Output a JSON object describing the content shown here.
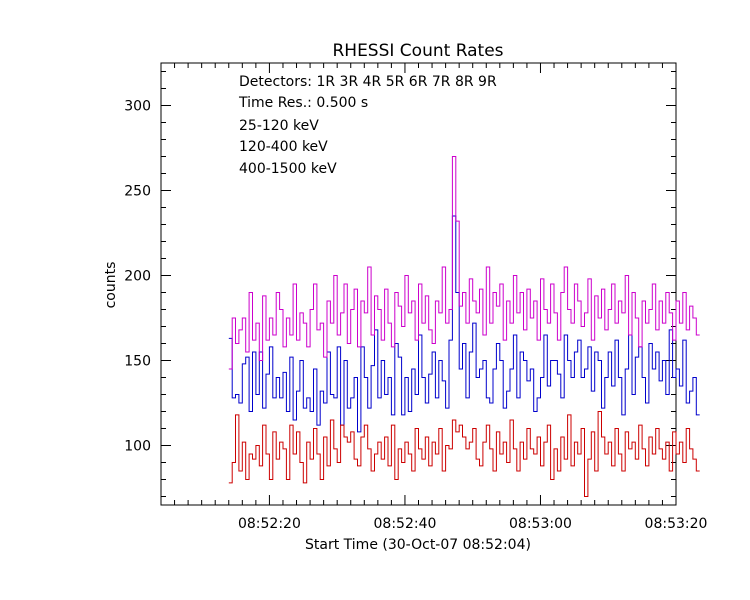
{
  "chart_data": {
    "type": "line",
    "title": "RHESSI Count Rates",
    "xlabel": "Start Time (30-Oct-07 08:52:04)",
    "ylabel": "counts",
    "x_unit": "seconds",
    "xlim": [
      0,
      76
    ],
    "ylim": [
      65,
      325
    ],
    "x_ticks": [
      {
        "value": 16,
        "label": "08:52:20"
      },
      {
        "value": 36,
        "label": "08:52:40"
      },
      {
        "value": 56,
        "label": "08:53:00"
      },
      {
        "value": 76,
        "label": "08:53:20"
      }
    ],
    "y_ticks": [
      {
        "value": 100,
        "label": "100"
      },
      {
        "value": 150,
        "label": "150"
      },
      {
        "value": 200,
        "label": "200"
      },
      {
        "value": 250,
        "label": "250"
      },
      {
        "value": 300,
        "label": "300"
      }
    ],
    "annotations": {
      "detectors": "Detectors:  1R 3R 4R 5R 6R 7R 8R 9R",
      "time_res": "Time Res.: 0.500 s"
    },
    "x_start": 10,
    "x_step": 0.5,
    "series": [
      {
        "name": "25-120 keV",
        "color": "#0000cc",
        "values": [
          163,
          128,
          130,
          125,
          148,
          152,
          120,
          155,
          130,
          155,
          122,
          142,
          158,
          128,
          140,
          128,
          143,
          120,
          152,
          115,
          132,
          150,
          122,
          128,
          120,
          145,
          112,
          132,
          125,
          155,
          130,
          128,
          158,
          112,
          150,
          122,
          128,
          140,
          108,
          158,
          140,
          122,
          147,
          168,
          128,
          150,
          130,
          140,
          118,
          160,
          152,
          118,
          140,
          120,
          145,
          130,
          165,
          140,
          125,
          142,
          155,
          128,
          150,
          138,
          122,
          162,
          235,
          190,
          145,
          160,
          128,
          155,
          172,
          140,
          145,
          150,
          128,
          125,
          145,
          160,
          150,
          122,
          132,
          145,
          165,
          128,
          155,
          150,
          138,
          145,
          120,
          128,
          140,
          165,
          135,
          150,
          150,
          142,
          128,
          165,
          150,
          140,
          155,
          162,
          140,
          145,
          158,
          132,
          155,
          150,
          122,
          140,
          155,
          135,
          162,
          140,
          118,
          145,
          165,
          130,
          152,
          158,
          140,
          125,
          160,
          145,
          155,
          138,
          150,
          130,
          168,
          140,
          145,
          135,
          162,
          125,
          132,
          140,
          118
        ]
      },
      {
        "name": "120-400 keV",
        "color": "#cc00cc",
        "values": [
          145,
          175,
          160,
          168,
          175,
          155,
          190,
          162,
          172,
          150,
          188,
          162,
          175,
          165,
          190,
          180,
          158,
          175,
          165,
          195,
          162,
          178,
          172,
          158,
          180,
          195,
          168,
          172,
          152,
          185,
          172,
          200,
          165,
          178,
          195,
          160,
          180,
          192,
          158,
          185,
          178,
          205,
          165,
          188,
          180,
          162,
          192,
          172,
          158,
          190,
          182,
          170,
          200,
          178,
          185,
          162,
          195,
          172,
          188,
          168,
          160,
          185,
          178,
          205,
          172,
          180,
          270,
          232,
          182,
          190,
          172,
          198,
          185,
          178,
          192,
          165,
          205,
          172,
          190,
          182,
          195,
          162,
          185,
          172,
          200,
          178,
          190,
          168,
          192,
          175,
          185,
          162,
          198,
          180,
          172,
          195,
          178,
          162,
          190,
          205,
          180,
          172,
          195,
          185,
          170,
          178,
          198,
          162,
          188,
          175,
          192,
          168,
          180,
          195,
          172,
          185,
          178,
          200,
          165,
          190,
          175,
          158,
          185,
          172,
          180,
          195,
          168,
          185,
          172,
          190,
          178,
          162,
          185,
          172,
          190,
          168,
          182,
          175,
          165
        ]
      },
      {
        "name": "400-1500 keV",
        "color": "#cc0000",
        "values": [
          78,
          90,
          118,
          85,
          102,
          80,
          95,
          92,
          100,
          88,
          112,
          95,
          80,
          108,
          92,
          102,
          98,
          80,
          112,
          95,
          108,
          90,
          78,
          102,
          92,
          110,
          95,
          80,
          105,
          88,
          115,
          98,
          90,
          112,
          105,
          102,
          108,
          92,
          88,
          105,
          112,
          98,
          85,
          95,
          102,
          92,
          105,
          88,
          112,
          80,
          98,
          90,
          102,
          95,
          85,
          110,
          98,
          92,
          105,
          88,
          102,
          95,
          110,
          85,
          100,
          98,
          115,
          108,
          112,
          105,
          98,
          102,
          110,
          92,
          88,
          102,
          112,
          98,
          85,
          108,
          95,
          102,
          90,
          115,
          98,
          85,
          102,
          92,
          110,
          98,
          95,
          105,
          88,
          102,
          112,
          80,
          98,
          85,
          105,
          92,
          118,
          88,
          102,
          95,
          110,
          70,
          92,
          108,
          85,
          120,
          105,
          95,
          102,
          88,
          110,
          95,
          85,
          108,
          98,
          102,
          92,
          112,
          98,
          88,
          105,
          95,
          110,
          98,
          92,
          102,
          85,
          108,
          95,
          102,
          90,
          110,
          98,
          92,
          85
        ]
      }
    ]
  }
}
